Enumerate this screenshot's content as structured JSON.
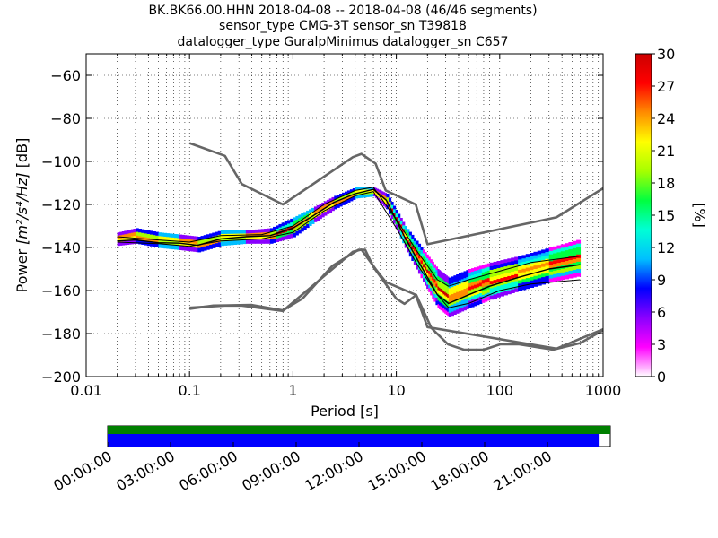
{
  "title_lines": [
    "BK.BK66.00.HHN   2018-04-08 -- 2018-04-08  (46/46 segments)",
    "sensor_type CMG-3T sensor_sn T39818",
    "datalogger_type GuralpMinimus datalogger_sn C657"
  ],
  "colorbar": {
    "label": "[%]",
    "min": 0,
    "max": 30,
    "ticks": [
      "0",
      "3",
      "6",
      "9",
      "12",
      "15",
      "18",
      "21",
      "24",
      "27",
      "30"
    ],
    "colors": [
      "#ffffff",
      "#ff00ff",
      "#8a00ff",
      "#0000ff",
      "#00bfff",
      "#00ffd5",
      "#00ff40",
      "#a6ff00",
      "#ffff00",
      "#ff8c00",
      "#ff0000",
      "#cc0000"
    ]
  },
  "chart_data": {
    "type": "heatmap",
    "xlabel": "Period [s]",
    "ylabel_prefix": "Power ",
    "ylabel_unit": "[m²/s⁴/Hz]",
    "ylabel_suffix": " [dB]",
    "xscale": "log",
    "xlim": [
      0.01,
      1000
    ],
    "ylim": [
      -200,
      -50
    ],
    "x_ticks": [
      {
        "value": 0.01,
        "label": "0.01"
      },
      {
        "value": 0.1,
        "label": "0.1"
      },
      {
        "value": 1,
        "label": "1"
      },
      {
        "value": 10,
        "label": "10"
      },
      {
        "value": 100,
        "label": "100"
      },
      {
        "value": 1000,
        "label": "1000"
      }
    ],
    "y_ticks": [
      {
        "value": -60,
        "label": "−60"
      },
      {
        "value": -80,
        "label": "−80"
      },
      {
        "value": -100,
        "label": "−100"
      },
      {
        "value": -120,
        "label": "−120"
      },
      {
        "value": -140,
        "label": "−140"
      },
      {
        "value": -160,
        "label": "−160"
      },
      {
        "value": -180,
        "label": "−180"
      },
      {
        "value": -200,
        "label": "−200"
      }
    ],
    "grid": true,
    "nhnm": {
      "period": [
        0.1,
        0.22,
        0.32,
        0.8,
        3.8,
        4.6,
        6.3,
        7.9,
        15.4,
        20,
        354,
        1000
      ],
      "db": [
        -168,
        -167,
        -167,
        -169.5,
        -142,
        -141,
        -150,
        -156,
        -162,
        -177,
        -187,
        -178
      ]
    },
    "nlnm": {
      "period": [
        0.1,
        0.17,
        0.4,
        0.8,
        1.24,
        2.4,
        4.3,
        5,
        6,
        10,
        12,
        15.6,
        21.9,
        31.6,
        45,
        70,
        101,
        154,
        328,
        600,
        1000
      ],
      "db": [
        -168.5,
        -167,
        -166.7,
        -169.2,
        -163.7,
        -148.6,
        -141.1,
        -141.1,
        -149,
        -163.8,
        -166.2,
        -162.1,
        -177.5,
        -185,
        -187.5,
        -187.5,
        -185,
        -185,
        -187.5,
        -184.4,
        -178.5
      ]
    },
    "nhnm_upper": {
      "period": [
        0.1,
        0.22,
        0.32,
        0.8,
        3.8,
        4.6,
        6.3,
        7.9,
        15.4,
        20,
        354,
        1000
      ],
      "db": [
        -91.5,
        -97.4,
        -110.5,
        -120,
        -98,
        -96.5,
        -101,
        -113.5,
        -120,
        -138.5,
        -126,
        -112.5
      ]
    },
    "mean_curve": {
      "period": [
        0.02,
        0.03,
        0.05,
        0.08,
        0.12,
        0.2,
        0.35,
        0.6,
        1,
        1.6,
        2.5,
        4,
        6,
        8,
        12,
        18,
        25,
        32,
        50,
        80,
        150,
        300,
        600
      ],
      "db": [
        -137,
        -136.5,
        -137.8,
        -138,
        -139,
        -136,
        -135,
        -134.5,
        -131,
        -125,
        -119,
        -115,
        -113,
        -118,
        -135,
        -150,
        -162,
        -166,
        -162,
        -158,
        -154,
        -150,
        -148
      ]
    },
    "percentile_low": {
      "period": [
        0.02,
        0.05,
        0.1,
        0.2,
        0.5,
        1,
        2,
        4,
        6,
        10,
        16,
        25,
        32,
        50,
        100,
        200,
        600
      ],
      "db": [
        -137.5,
        -138.2,
        -139.5,
        -137,
        -136,
        -133,
        -123,
        -116,
        -114,
        -131,
        -148,
        -162,
        -168,
        -166,
        -160,
        -157,
        -155
      ]
    },
    "percentile_high": {
      "period": [
        0.02,
        0.05,
        0.1,
        0.2,
        0.5,
        1,
        2,
        4,
        6,
        10,
        16,
        25,
        32,
        50,
        100,
        200,
        600
      ],
      "db": [
        -135,
        -136.5,
        -137.5,
        -134.5,
        -134,
        -130,
        -120,
        -113.5,
        -112,
        -127,
        -142,
        -155,
        -158,
        -155,
        -151,
        -147,
        -144
      ]
    },
    "density_band": [
      {
        "period": 0.02,
        "db_low": -139,
        "db_high": -133
      },
      {
        "period": 0.03,
        "db_low": -138,
        "db_high": -131
      },
      {
        "period": 0.05,
        "db_low": -140,
        "db_high": -133
      },
      {
        "period": 0.08,
        "db_low": -141,
        "db_high": -134
      },
      {
        "period": 0.12,
        "db_low": -142,
        "db_high": -135
      },
      {
        "period": 0.2,
        "db_low": -139,
        "db_high": -132
      },
      {
        "period": 0.35,
        "db_low": -138,
        "db_high": -132
      },
      {
        "period": 0.6,
        "db_low": -138,
        "db_high": -131
      },
      {
        "period": 1,
        "db_low": -135,
        "db_high": -126
      },
      {
        "period": 1.6,
        "db_low": -128,
        "db_high": -121
      },
      {
        "period": 2.5,
        "db_low": -122,
        "db_high": -116
      },
      {
        "period": 4,
        "db_low": -117,
        "db_high": -112
      },
      {
        "period": 6,
        "db_low": -116,
        "db_high": -112
      },
      {
        "period": 8,
        "db_low": -122,
        "db_high": -115
      },
      {
        "period": 12,
        "db_low": -140,
        "db_high": -130
      },
      {
        "period": 18,
        "db_low": -156,
        "db_high": -141
      },
      {
        "period": 25,
        "db_low": -168,
        "db_high": -150
      },
      {
        "period": 32,
        "db_low": -172,
        "db_high": -154
      },
      {
        "period": 50,
        "db_low": -168,
        "db_high": -150
      },
      {
        "period": 80,
        "db_low": -164,
        "db_high": -147
      },
      {
        "period": 150,
        "db_low": -160,
        "db_high": -144
      },
      {
        "period": 300,
        "db_low": -156,
        "db_high": -140
      },
      {
        "period": 600,
        "db_low": -153,
        "db_high": -136
      }
    ]
  },
  "timeline": {
    "labels": [
      "00:00:00",
      "03:00:00",
      "06:00:00",
      "09:00:00",
      "12:00:00",
      "15:00:00",
      "18:00:00",
      "21:00:00"
    ],
    "data_coverage": 0.977,
    "gap_coverage": 1.0,
    "data_color": "#0000ff",
    "gap_color": "#008000"
  }
}
